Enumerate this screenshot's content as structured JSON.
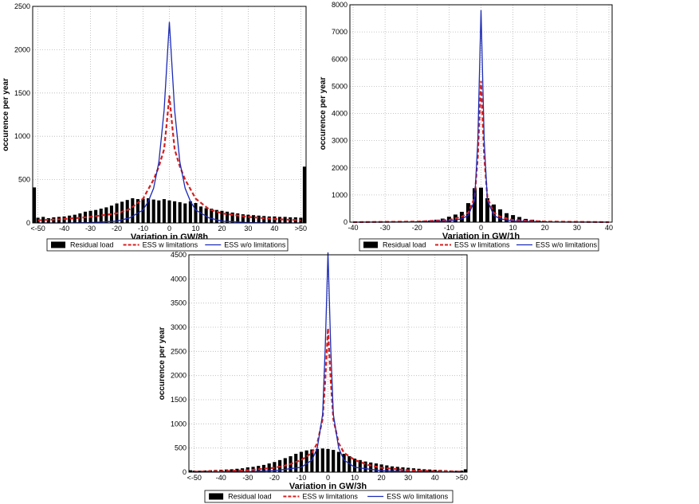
{
  "chart_data": [
    {
      "type": "bar",
      "title": "",
      "xlabel": "Variation in GW/8h",
      "ylabel": "occurence per year",
      "xlim": [
        -52,
        52
      ],
      "ylim": [
        0,
        2500
      ],
      "yticks": [
        0,
        500,
        1000,
        1500,
        2000,
        2500
      ],
      "xticks": [
        -50,
        -40,
        -30,
        -20,
        -10,
        0,
        10,
        20,
        30,
        40,
        50
      ],
      "xtick_labels": [
        "<-50",
        "-40",
        "-30",
        "-20",
        "-10",
        "0",
        "10",
        "20",
        "30",
        "40",
        ">50"
      ],
      "grid": true,
      "legend_placement": "below",
      "legend": [
        "Residual load",
        "ESS w limitations",
        "ESS w/o limitations"
      ],
      "series": [
        {
          "name": "Residual load",
          "kind": "bar",
          "color": "#000000",
          "x": [
            -52,
            -50,
            -48,
            -46,
            -44,
            -42,
            -40,
            -38,
            -36,
            -34,
            -32,
            -30,
            -28,
            -26,
            -24,
            -22,
            -20,
            -18,
            -16,
            -14,
            -12,
            -10,
            -8,
            -6,
            -4,
            -2,
            0,
            2,
            4,
            6,
            8,
            10,
            12,
            14,
            16,
            18,
            20,
            22,
            24,
            26,
            28,
            30,
            32,
            34,
            36,
            38,
            40,
            42,
            44,
            46,
            48,
            50,
            52
          ],
          "values": [
            410,
            60,
            70,
            55,
            65,
            70,
            75,
            85,
            95,
            110,
            130,
            140,
            150,
            165,
            180,
            200,
            225,
            245,
            265,
            285,
            275,
            280,
            285,
            270,
            260,
            275,
            260,
            250,
            240,
            225,
            250,
            230,
            190,
            170,
            165,
            150,
            140,
            130,
            120,
            110,
            100,
            95,
            90,
            85,
            80,
            75,
            75,
            70,
            70,
            65,
            65,
            60,
            650
          ]
        },
        {
          "name": "ESS w limitations",
          "kind": "line",
          "color": "#d42020",
          "dash": true,
          "x": [
            -50,
            -40,
            -30,
            -20,
            -15,
            -10,
            -6,
            -4,
            -2,
            -1,
            0,
            1,
            2,
            4,
            6,
            10,
            15,
            20,
            30,
            40,
            50
          ],
          "values": [
            30,
            45,
            70,
            110,
            160,
            280,
            500,
            650,
            850,
            1150,
            1470,
            1150,
            850,
            650,
            500,
            280,
            160,
            110,
            70,
            45,
            30
          ]
        },
        {
          "name": "ESS w/o limitations",
          "kind": "line",
          "color": "#1c2bb5",
          "dash": false,
          "x": [
            -50,
            -40,
            -30,
            -20,
            -15,
            -10,
            -8,
            -6,
            -4,
            -2,
            0,
            2,
            4,
            6,
            8,
            10,
            15,
            20,
            30,
            40,
            50
          ],
          "values": [
            0,
            0,
            5,
            20,
            60,
            150,
            250,
            400,
            700,
            1300,
            2320,
            1300,
            700,
            400,
            250,
            150,
            60,
            20,
            5,
            0,
            0
          ]
        }
      ]
    },
    {
      "type": "bar",
      "title": "",
      "xlabel": "Variation in GW/1h",
      "ylabel": "occurence per year",
      "xlim": [
        -41,
        41
      ],
      "ylim": [
        0,
        8000
      ],
      "yticks": [
        0,
        1000,
        2000,
        3000,
        4000,
        5000,
        6000,
        7000,
        8000
      ],
      "xticks": [
        -40,
        -30,
        -20,
        -10,
        0,
        10,
        20,
        30,
        40
      ],
      "xtick_labels": [
        "-40",
        "-30",
        "-20",
        "-10",
        "0",
        "10",
        "20",
        "30",
        "40"
      ],
      "grid": true,
      "legend_placement": "below",
      "legend": [
        "Residual load",
        "ESS w limitations",
        "ESS w/o limitations"
      ],
      "series": [
        {
          "name": "Residual load",
          "kind": "bar",
          "color": "#000000",
          "x": [
            -24,
            -22,
            -20,
            -18,
            -16,
            -14,
            -12,
            -10,
            -8,
            -6,
            -4,
            -2,
            0,
            2,
            4,
            6,
            8,
            10,
            12,
            14,
            16,
            18,
            20,
            22
          ],
          "values": [
            10,
            20,
            30,
            45,
            60,
            90,
            130,
            200,
            280,
            380,
            700,
            1250,
            1270,
            880,
            650,
            470,
            330,
            260,
            190,
            120,
            90,
            60,
            35,
            15
          ]
        },
        {
          "name": "ESS w limitations",
          "kind": "line",
          "color": "#d42020",
          "dash": true,
          "x": [
            -40,
            -20,
            -10,
            -6,
            -4,
            -2,
            -1,
            0,
            1,
            2,
            4,
            6,
            10,
            20,
            40
          ],
          "values": [
            0,
            20,
            80,
            200,
            350,
            900,
            2400,
            5200,
            2400,
            900,
            350,
            200,
            80,
            20,
            0
          ]
        },
        {
          "name": "ESS w/o limitations",
          "kind": "line",
          "color": "#1c2bb5",
          "dash": false,
          "x": [
            -40,
            -20,
            -10,
            -6,
            -4,
            -2,
            -1,
            0,
            1,
            2,
            4,
            6,
            10,
            20,
            40
          ],
          "values": [
            0,
            5,
            40,
            120,
            250,
            800,
            3000,
            7800,
            3000,
            800,
            250,
            120,
            40,
            5,
            0
          ]
        }
      ]
    },
    {
      "type": "bar",
      "title": "",
      "xlabel": "Variation in GW/3h",
      "ylabel": "occurence per year",
      "xlim": [
        -52,
        52
      ],
      "ylim": [
        0,
        4500
      ],
      "yticks": [
        0,
        500,
        1000,
        1500,
        2000,
        2500,
        3000,
        3500,
        4000,
        4500
      ],
      "xticks": [
        -50,
        -40,
        -30,
        -20,
        -10,
        0,
        10,
        20,
        30,
        40,
        50
      ],
      "xtick_labels": [
        "<-50",
        "-40",
        "-30",
        "-20",
        "-10",
        "0",
        "10",
        "20",
        "30",
        "40",
        ">50"
      ],
      "grid": true,
      "legend_placement": "below",
      "legend": [
        "Residual load",
        "ESS w limitations",
        "ESS w/o limitations"
      ],
      "series": [
        {
          "name": "Residual load",
          "kind": "bar",
          "color": "#000000",
          "x": [
            -52,
            -50,
            -48,
            -46,
            -44,
            -42,
            -40,
            -38,
            -36,
            -34,
            -32,
            -30,
            -28,
            -26,
            -24,
            -22,
            -20,
            -18,
            -16,
            -14,
            -12,
            -10,
            -8,
            -6,
            -4,
            -2,
            0,
            2,
            4,
            6,
            8,
            10,
            12,
            14,
            16,
            18,
            20,
            22,
            24,
            26,
            28,
            30,
            32,
            34,
            36,
            38,
            40,
            42,
            44,
            46,
            48,
            50,
            52
          ],
          "values": [
            40,
            30,
            30,
            35,
            40,
            45,
            50,
            55,
            60,
            70,
            80,
            100,
            110,
            130,
            150,
            180,
            210,
            250,
            290,
            330,
            380,
            420,
            450,
            470,
            480,
            490,
            480,
            460,
            420,
            380,
            330,
            280,
            250,
            220,
            200,
            180,
            160,
            140,
            120,
            110,
            100,
            90,
            80,
            70,
            60,
            55,
            50,
            45,
            40,
            35,
            30,
            30,
            60
          ]
        },
        {
          "name": "ESS w limitations",
          "kind": "line",
          "color": "#d42020",
          "dash": true,
          "x": [
            -50,
            -40,
            -30,
            -20,
            -15,
            -10,
            -6,
            -4,
            -2,
            -1,
            0,
            1,
            2,
            4,
            6,
            10,
            15,
            20,
            30,
            40,
            50
          ],
          "values": [
            10,
            20,
            40,
            90,
            150,
            250,
            400,
            600,
            1100,
            1900,
            2980,
            1900,
            1100,
            600,
            400,
            250,
            150,
            90,
            40,
            20,
            10
          ]
        },
        {
          "name": "ESS w/o limitations",
          "kind": "line",
          "color": "#1c2bb5",
          "dash": false,
          "x": [
            -50,
            -40,
            -30,
            -20,
            -10,
            -6,
            -4,
            -2,
            -1,
            0,
            1,
            2,
            4,
            6,
            10,
            20,
            30,
            40,
            50
          ],
          "values": [
            0,
            5,
            10,
            30,
            100,
            250,
            500,
            1200,
            2600,
            4550,
            2600,
            1200,
            500,
            250,
            100,
            30,
            10,
            5,
            0
          ]
        }
      ]
    }
  ]
}
